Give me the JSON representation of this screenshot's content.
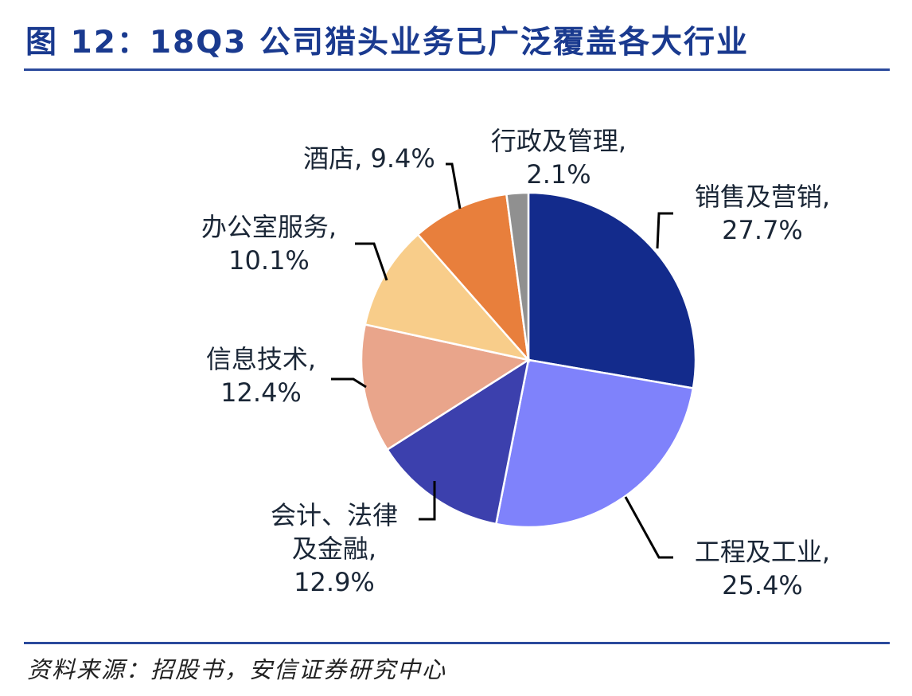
{
  "title": "图 12：18Q3 公司猎头业务已广泛覆盖各大行业",
  "source": "资料来源：招股书，安信证券研究中心",
  "chart_data": {
    "type": "pie",
    "title": "",
    "slices": [
      {
        "name": "销售及营销",
        "value": 27.7,
        "display": "27.7%",
        "color": "#132b8c"
      },
      {
        "name": "工程及工业",
        "value": 25.4,
        "display": "25.4%",
        "color": "#7f82fb"
      },
      {
        "name": "会计、法律及金融",
        "value": 12.9,
        "display": "12.9%",
        "color": "#3c40ad"
      },
      {
        "name": "信息技术",
        "value": 12.4,
        "display": "12.4%",
        "color": "#e9a58b"
      },
      {
        "name": "办公室服务",
        "value": 10.1,
        "display": "10.1%",
        "color": "#f8cd8a"
      },
      {
        "name": "酒店",
        "value": 9.4,
        "display": "9.4%",
        "color": "#e87f3c"
      },
      {
        "name": "行政及管理",
        "value": 2.1,
        "display": "2.1%",
        "color": "#909090"
      }
    ],
    "labels": [
      {
        "lines": [
          "销售及营销,",
          "27.7%"
        ]
      },
      {
        "lines": [
          "工程及工业,",
          "25.4%"
        ]
      },
      {
        "lines": [
          "会计、法律",
          "及金融,",
          "12.9%"
        ]
      },
      {
        "lines": [
          "信息技术,",
          "12.4%"
        ]
      },
      {
        "lines": [
          "办公室服务,",
          "10.1%"
        ]
      },
      {
        "lines": [
          "酒店, 9.4%"
        ]
      },
      {
        "lines": [
          "行政及管理,",
          "2.1%"
        ]
      }
    ]
  }
}
